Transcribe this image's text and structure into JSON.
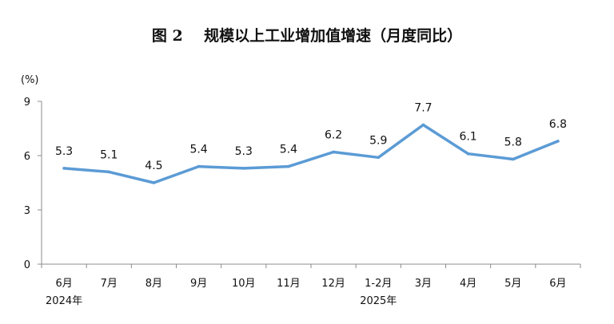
{
  "chart_data": {
    "type": "line",
    "title": "图 2    规模以上工业增加值增速（月度同比）",
    "ylabel": "(%)",
    "xlabel": "",
    "categories": [
      "6月",
      "7月",
      "8月",
      "9月",
      "10月",
      "11月",
      "12月",
      "1-2月",
      "3月",
      "4月",
      "5月",
      "6月"
    ],
    "year_labels": [
      {
        "category_index": 0,
        "text": "2024年"
      },
      {
        "category_index": 7,
        "text": "2025年"
      }
    ],
    "series": [
      {
        "values": [
          5.3,
          5.1,
          4.5,
          5.4,
          5.3,
          5.4,
          6.2,
          5.9,
          7.7,
          6.1,
          5.8,
          6.8
        ]
      }
    ],
    "data_labels": [
      "5.3",
      "5.1",
      "4.5",
      "5.4",
      "5.3",
      "5.4",
      "6.2",
      "5.9",
      "7.7",
      "6.1",
      "5.8",
      "6.8"
    ],
    "yticks": [
      "0",
      "3",
      "6",
      "9"
    ],
    "ylim": [
      0,
      9
    ],
    "grid": false,
    "legend": "none",
    "line_color": "#5b9bd5",
    "axis_color": "#8c8c8c"
  }
}
